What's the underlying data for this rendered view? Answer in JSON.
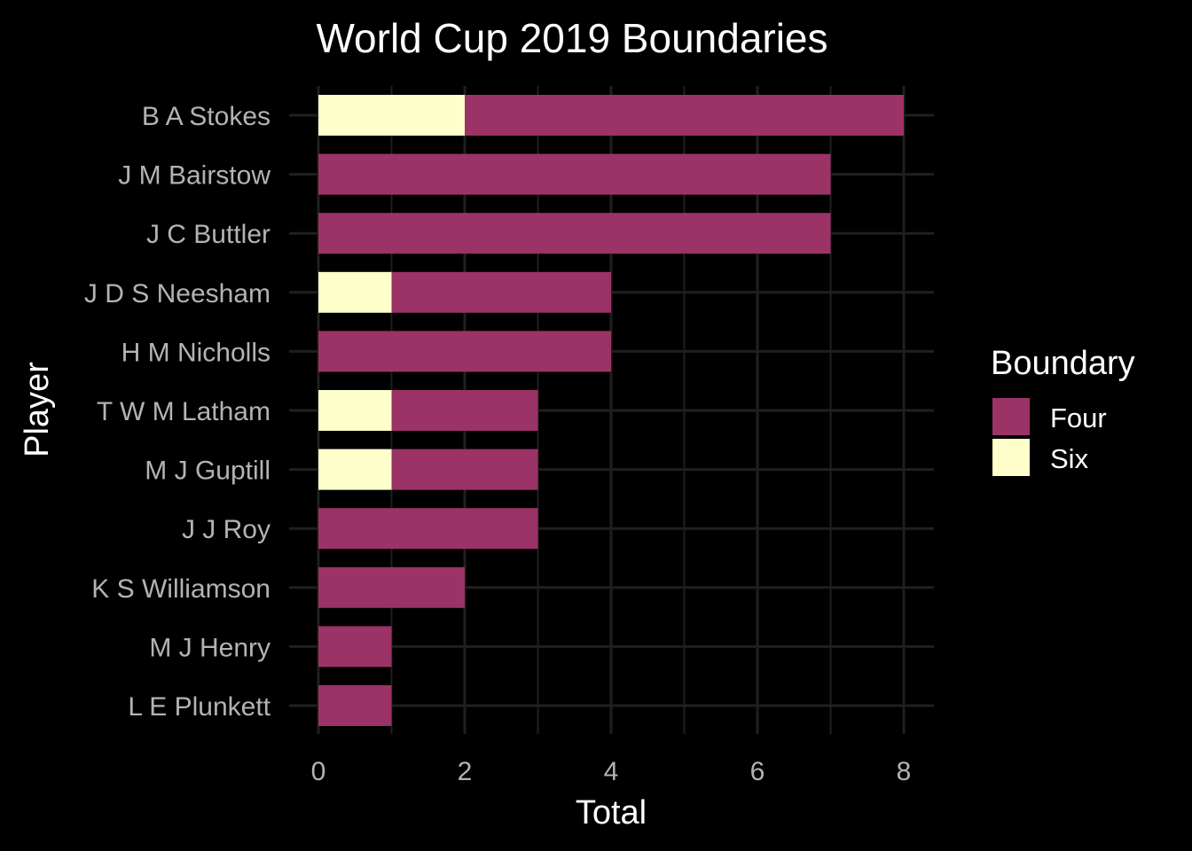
{
  "chart_data": {
    "type": "bar",
    "orientation": "horizontal",
    "stacked": true,
    "title": "World Cup 2019 Boundaries",
    "xlabel": "Total",
    "ylabel": "Player",
    "xlim": [
      0,
      8.4
    ],
    "xticks": [
      "0",
      "2",
      "4",
      "6",
      "8"
    ],
    "grid": true,
    "legend_title": "Boundary",
    "legend_position": "right",
    "categories": [
      "B A Stokes",
      "J M Bairstow",
      "J C Buttler",
      "J D S Neesham",
      "H M Nicholls",
      "T W M Latham",
      "M J Guptill",
      "J J Roy",
      "K S Williamson",
      "M J Henry",
      "L E Plunkett"
    ],
    "series": [
      {
        "name": "Six",
        "color": "#ffffcc",
        "values": [
          2,
          0,
          0,
          1,
          0,
          1,
          1,
          0,
          0,
          0,
          0
        ]
      },
      {
        "name": "Four",
        "color": "#9b3366",
        "values": [
          6,
          7,
          7,
          3,
          4,
          2,
          2,
          3,
          2,
          1,
          1
        ]
      }
    ],
    "legend_order": [
      "Four",
      "Six"
    ]
  },
  "colors": {
    "background": "#000000",
    "grid": "#1f1f1f",
    "tick_text": "#b3b3b3",
    "title_text": "#ffffff"
  }
}
